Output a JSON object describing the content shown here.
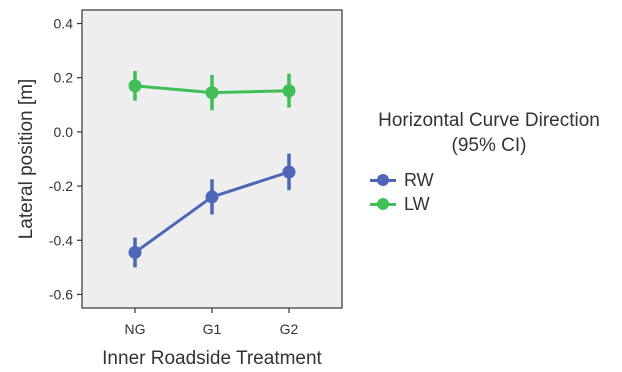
{
  "chart_data": {
    "type": "line",
    "xlabel": "Inner Roadside Treatment",
    "ylabel": "Lateral position [m]",
    "categories": [
      "NG",
      "G1",
      "G2"
    ],
    "ylim": [
      -0.65,
      0.45
    ],
    "yticks": [
      0.4,
      0.2,
      0.0,
      -0.2,
      -0.4,
      -0.6
    ],
    "ytick_labels": [
      "0.4",
      "0.2",
      "0.0",
      "-0.2",
      "-0.4",
      "-0.6"
    ],
    "grid": false,
    "background": "#eeeeee",
    "legend": {
      "title_line1": "Horizontal Curve Direction",
      "title_line2": "(95% CI)",
      "placement": "right"
    },
    "series": [
      {
        "name": "RW",
        "color": "#4c66b8",
        "values": [
          -0.445,
          -0.24,
          -0.148
        ],
        "ci_low": [
          -0.5,
          -0.305,
          -0.215
        ],
        "ci_high": [
          -0.39,
          -0.175,
          -0.08
        ]
      },
      {
        "name": "LW",
        "color": "#3fbf55",
        "values": [
          0.17,
          0.145,
          0.152
        ],
        "ci_low": [
          0.115,
          0.08,
          0.09
        ],
        "ci_high": [
          0.225,
          0.21,
          0.215
        ]
      }
    ]
  }
}
